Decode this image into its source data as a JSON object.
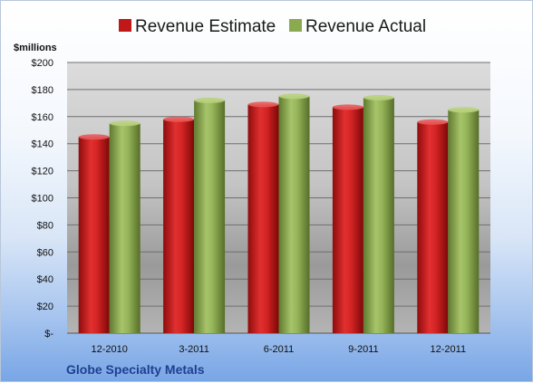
{
  "chart_data": {
    "type": "bar",
    "categories": [
      "12-2010",
      "3-2011",
      "6-2011",
      "9-2011",
      "12-2011"
    ],
    "series": [
      {
        "name": "Revenue Estimate",
        "values": [
          145,
          158,
          169,
          167,
          156
        ],
        "color": "#c01818"
      },
      {
        "name": "Revenue Actual",
        "values": [
          155,
          172,
          175,
          174,
          165
        ],
        "color": "#8aaa50"
      }
    ],
    "ylabel": "$millions",
    "ylim": [
      0,
      200
    ],
    "yticks": [
      0,
      20,
      40,
      60,
      80,
      100,
      120,
      140,
      160,
      180,
      200
    ],
    "ytick_labels": [
      "$-",
      "$20",
      "$40",
      "$60",
      "$80",
      "$100",
      "$120",
      "$140",
      "$160",
      "$180",
      "$200"
    ],
    "grid": true,
    "legend_position": "top"
  },
  "footer": {
    "company": "Globe Specialty Metals"
  }
}
